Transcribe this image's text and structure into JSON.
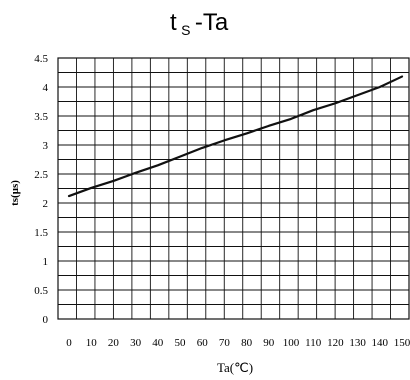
{
  "title": {
    "main": "t",
    "sub": "S",
    "rest": "-Ta"
  },
  "chart_data": {
    "type": "line",
    "title": "tS-Ta",
    "xlabel": "Ta(℃)",
    "ylabel": "ts(μs)",
    "xlim": [
      0,
      150
    ],
    "ylim": [
      0,
      4.5
    ],
    "x_ticks": [
      "0",
      "10",
      "20",
      "30",
      "40",
      "50",
      "60",
      "70",
      "80",
      "90",
      "100",
      "110",
      "120",
      "130",
      "140",
      "150"
    ],
    "y_ticks": [
      "0",
      "0.5",
      "1",
      "1.5",
      "2",
      "2.5",
      "3",
      "3.5",
      "4",
      "4.5"
    ],
    "grid": true,
    "series": [
      {
        "x": [
          0,
          10,
          20,
          30,
          40,
          50,
          60,
          70,
          80,
          90,
          100,
          110,
          120,
          130,
          140,
          150
        ],
        "y": [
          2.12,
          2.26,
          2.38,
          2.52,
          2.65,
          2.8,
          2.95,
          3.08,
          3.2,
          3.33,
          3.45,
          3.6,
          3.72,
          3.86,
          4.0,
          4.18
        ]
      }
    ],
    "line_color": "#111111"
  }
}
